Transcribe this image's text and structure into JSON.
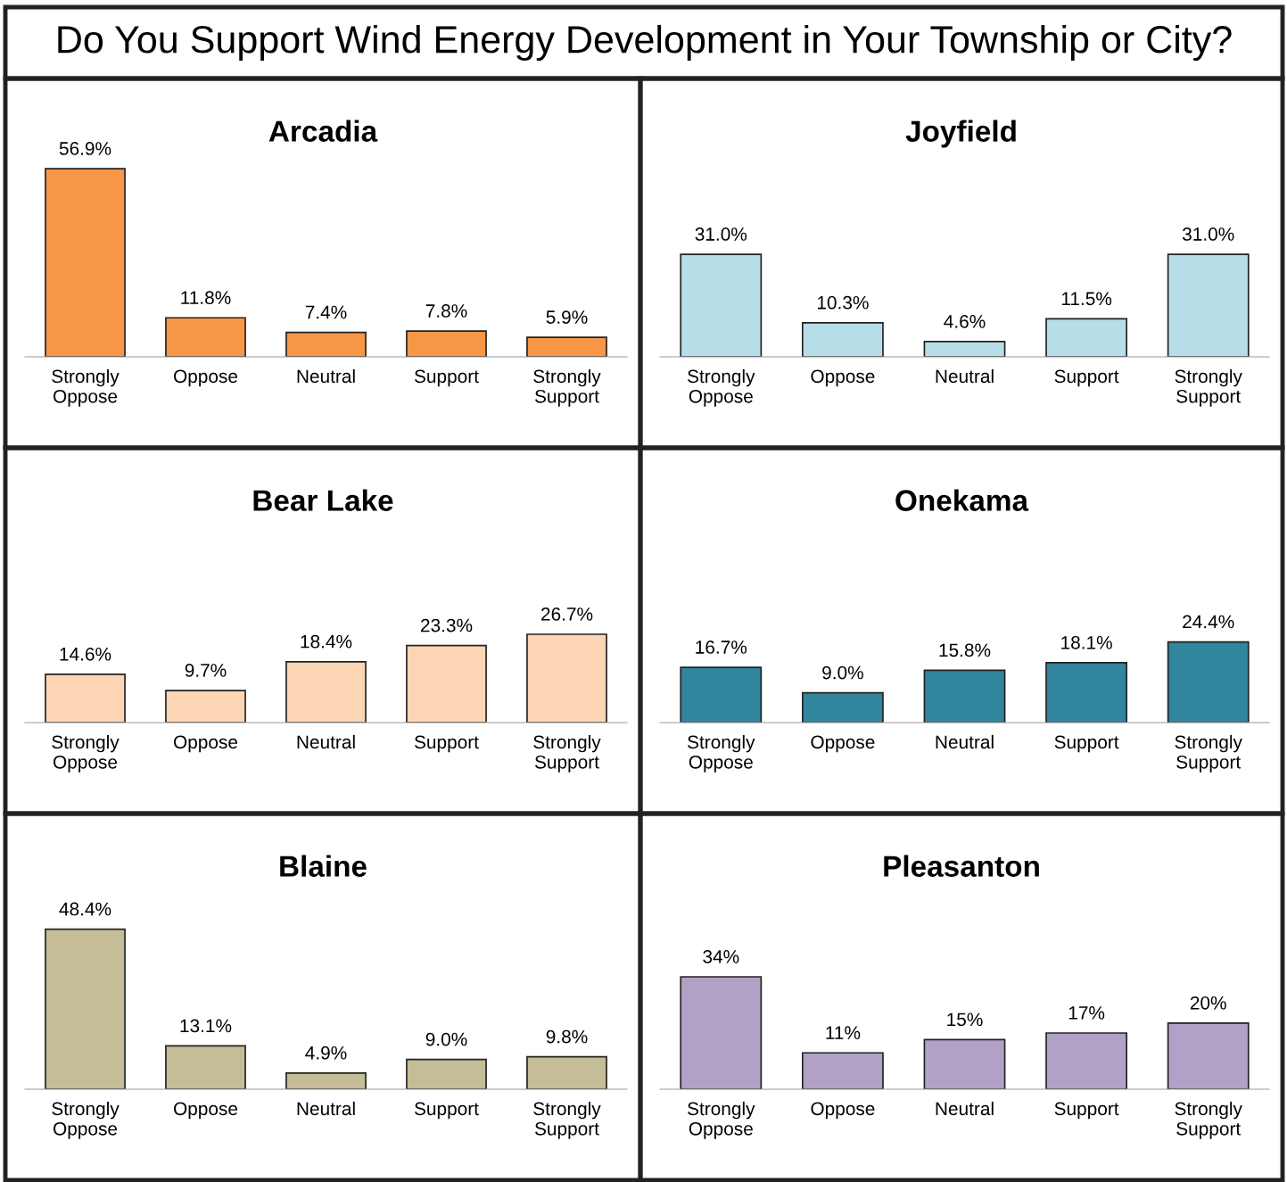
{
  "chart_data": [
    {
      "type": "other",
      "title": "Do You Support Wind Energy Development in Your Township or City?"
    },
    {
      "type": "bar",
      "title": "Arcadia",
      "categories": [
        "Strongly\nOppose",
        "Oppose",
        "Neutral",
        "Support",
        "Strongly\nSupport"
      ],
      "values": [
        56.9,
        11.8,
        7.4,
        7.8,
        5.9
      ],
      "value_labels": [
        "56.9%",
        "11.8%",
        "7.4%",
        "7.8%",
        "5.9%"
      ],
      "color": "#f79646",
      "grid": false,
      "legend": false
    },
    {
      "type": "bar",
      "title": "Joyfield",
      "categories": [
        "Strongly\nOppose",
        "Oppose",
        "Neutral",
        "Support",
        "Strongly\nSupport"
      ],
      "values": [
        31.0,
        10.3,
        4.6,
        11.5,
        31.0
      ],
      "value_labels": [
        "31.0%",
        "10.3%",
        "4.6%",
        "11.5%",
        "31.0%"
      ],
      "color": "#b7dde8",
      "grid": false,
      "legend": false
    },
    {
      "type": "bar",
      "title": "Bear Lake",
      "categories": [
        "Strongly\nOppose",
        "Oppose",
        "Neutral",
        "Support",
        "Strongly\nSupport"
      ],
      "values": [
        14.6,
        9.7,
        18.4,
        23.3,
        26.7
      ],
      "value_labels": [
        "14.6%",
        "9.7%",
        "18.4%",
        "23.3%",
        "26.7%"
      ],
      "color": "#fcd5b4",
      "grid": false,
      "legend": false
    },
    {
      "type": "bar",
      "title": "Onekama",
      "categories": [
        "Strongly\nOppose",
        "Oppose",
        "Neutral",
        "Support",
        "Strongly\nSupport"
      ],
      "values": [
        16.7,
        9.0,
        15.8,
        18.1,
        24.4
      ],
      "value_labels": [
        "16.7%",
        "9.0%",
        "15.8%",
        "18.1%",
        "24.4%"
      ],
      "color": "#31859c",
      "grid": false,
      "legend": false
    },
    {
      "type": "bar",
      "title": "Blaine",
      "categories": [
        "Strongly\nOppose",
        "Oppose",
        "Neutral",
        "Support",
        "Strongly\nSupport"
      ],
      "values": [
        48.4,
        13.1,
        4.9,
        9.0,
        9.8
      ],
      "value_labels": [
        "48.4%",
        "13.1%",
        "4.9%",
        "9.0%",
        "9.8%"
      ],
      "color": "#c4bd97",
      "grid": false,
      "legend": false
    },
    {
      "type": "bar",
      "title": "Pleasanton",
      "categories": [
        "Strongly\nOppose",
        "Oppose",
        "Neutral",
        "Support",
        "Strongly\nSupport"
      ],
      "values": [
        34,
        11,
        15,
        17,
        20
      ],
      "value_labels": [
        "34%",
        "11%",
        "15%",
        "17%",
        "20%"
      ],
      "color": "#b2a1c7",
      "grid": false,
      "legend": false
    }
  ]
}
